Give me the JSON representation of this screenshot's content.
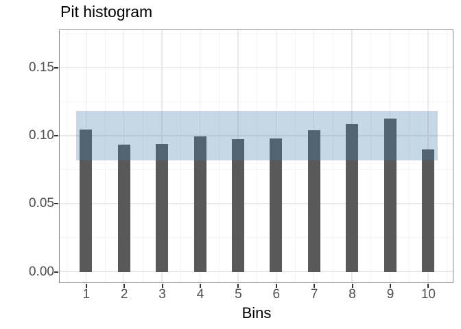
{
  "chart_data": {
    "type": "bar",
    "title": "Pit histogram",
    "xlabel": "Bins",
    "ylabel": "",
    "categories": [
      "1",
      "2",
      "3",
      "4",
      "5",
      "6",
      "7",
      "8",
      "9",
      "10"
    ],
    "values": [
      0.1045,
      0.0931,
      0.0939,
      0.0993,
      0.0975,
      0.0979,
      0.1037,
      0.1082,
      0.1124,
      0.09
    ],
    "band": {
      "lower": 0.0815,
      "upper": 0.1182
    },
    "ytick_labels": [
      "0.00",
      "0.05",
      "0.10",
      "0.15"
    ],
    "ytick_values": [
      0,
      0.05,
      0.1,
      0.15
    ],
    "ytick_minor_values": [
      0.025,
      0.075,
      0.125,
      0.175
    ],
    "ylim": [
      -0.011,
      0.178
    ],
    "grid": "major-and-minor",
    "legend": "none",
    "colors": {
      "bar": "#595959",
      "band": "rgba(69,124,172,0.30)",
      "axis_text": "#4d4d4d",
      "title_text": "#000000",
      "grid_major": "#e9e9e9",
      "grid_minor": "#f4f4f4",
      "panel_border": "#898989",
      "tick_mark": "#333333"
    }
  }
}
